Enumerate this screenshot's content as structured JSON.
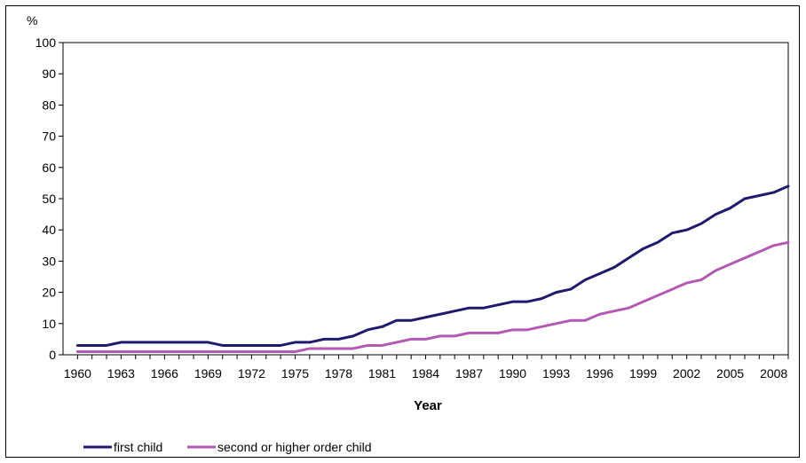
{
  "chart_data": {
    "type": "line",
    "ylabel": "%",
    "xlabel": "Year",
    "ylim": [
      0,
      100
    ],
    "yticks": [
      0,
      10,
      20,
      30,
      40,
      50,
      60,
      70,
      80,
      90,
      100
    ],
    "xlim": [
      1959,
      2009
    ],
    "xtick_labels": [
      "1960",
      "1963",
      "1966",
      "1969",
      "1972",
      "1975",
      "1978",
      "1981",
      "1984",
      "1987",
      "1990",
      "1993",
      "1996",
      "1999",
      "2002",
      "2005",
      "2008"
    ],
    "x": [
      1960,
      1961,
      1962,
      1963,
      1964,
      1965,
      1966,
      1967,
      1968,
      1969,
      1970,
      1971,
      1972,
      1973,
      1974,
      1975,
      1976,
      1977,
      1978,
      1979,
      1980,
      1981,
      1982,
      1983,
      1984,
      1985,
      1986,
      1987,
      1988,
      1989,
      1990,
      1991,
      1992,
      1993,
      1994,
      1995,
      1996,
      1997,
      1998,
      1999,
      2000,
      2001,
      2002,
      2003,
      2004,
      2005,
      2006,
      2007,
      2008,
      2009
    ],
    "series": [
      {
        "name": "first child",
        "color": "#1f1a6e",
        "values": [
          3,
          3,
          3,
          4,
          4,
          4,
          4,
          4,
          4,
          4,
          3,
          3,
          3,
          3,
          3,
          4,
          4,
          5,
          5,
          6,
          8,
          9,
          11,
          11,
          12,
          13,
          14,
          15,
          15,
          16,
          17,
          17,
          18,
          20,
          21,
          24,
          26,
          28,
          31,
          34,
          36,
          39,
          40,
          42,
          45,
          47,
          50,
          51,
          52,
          54
        ]
      },
      {
        "name": "second or higher order child",
        "color": "#b359b3",
        "values": [
          1,
          1,
          1,
          1,
          1,
          1,
          1,
          1,
          1,
          1,
          1,
          1,
          1,
          1,
          1,
          1,
          2,
          2,
          2,
          2,
          3,
          3,
          4,
          5,
          5,
          6,
          6,
          7,
          7,
          7,
          8,
          8,
          9,
          10,
          11,
          11,
          13,
          14,
          15,
          17,
          19,
          21,
          23,
          24,
          27,
          29,
          31,
          33,
          35,
          36
        ]
      }
    ],
    "grid": false,
    "legend": "bottom-left"
  }
}
